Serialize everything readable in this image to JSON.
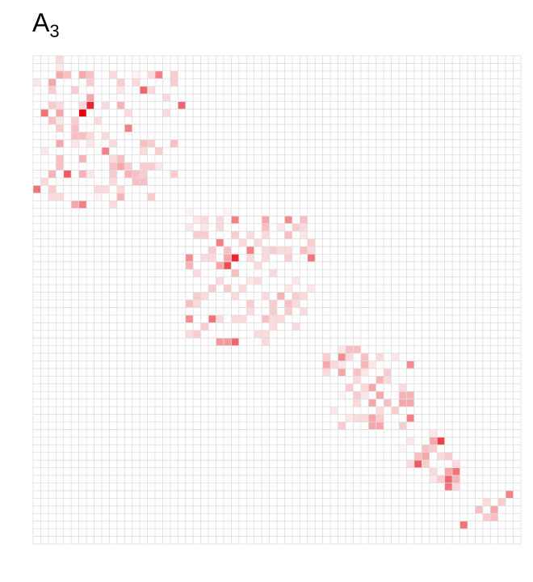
{
  "chart_data": {
    "type": "heatmap",
    "title": {
      "base": "A",
      "subscript": "3"
    },
    "rows": 64,
    "cols": 64,
    "color_low": "#ffffff",
    "color_high": "#e8000b",
    "grid_color": "#dddddd",
    "cells": [
      [
        0,
        3,
        0.15
      ],
      [
        1,
        3,
        0.1
      ],
      [
        2,
        3,
        0.35
      ],
      [
        2,
        4,
        0.25
      ],
      [
        2,
        6,
        0.35
      ],
      [
        2,
        7,
        0.25
      ],
      [
        2,
        10,
        0.15
      ],
      [
        2,
        13,
        0.05
      ],
      [
        2,
        15,
        0.15
      ],
      [
        2,
        16,
        0.5
      ],
      [
        2,
        18,
        0.2
      ],
      [
        3,
        0,
        0.1
      ],
      [
        3,
        2,
        0.35
      ],
      [
        3,
        7,
        0.2
      ],
      [
        3,
        11,
        0.2
      ],
      [
        3,
        13,
        0.15
      ],
      [
        3,
        18,
        0.2
      ],
      [
        4,
        2,
        0.2
      ],
      [
        4,
        5,
        0.2
      ],
      [
        4,
        11,
        0.1
      ],
      [
        4,
        14,
        0.6
      ],
      [
        4,
        15,
        0.15
      ],
      [
        5,
        7,
        0.35
      ],
      [
        5,
        17,
        0.15
      ],
      [
        6,
        2,
        0.2
      ],
      [
        6,
        3,
        0.15
      ],
      [
        6,
        6,
        0.15
      ],
      [
        6,
        7,
        0.85
      ],
      [
        6,
        9,
        0.15
      ],
      [
        6,
        11,
        0.3
      ],
      [
        6,
        19,
        0.6
      ],
      [
        7,
        1,
        0.55
      ],
      [
        7,
        3,
        0.35
      ],
      [
        7,
        6,
        1.0
      ],
      [
        7,
        12,
        0.15
      ],
      [
        7,
        17,
        0.15
      ],
      [
        8,
        2,
        0.25
      ],
      [
        8,
        3,
        0.1
      ],
      [
        8,
        5,
        0.2
      ],
      [
        8,
        8,
        0.15
      ],
      [
        9,
        3,
        0.2
      ],
      [
        9,
        5,
        0.25
      ],
      [
        9,
        12,
        0.5
      ],
      [
        10,
        5,
        0.25
      ],
      [
        10,
        6,
        0.25
      ],
      [
        10,
        7,
        0.15
      ],
      [
        10,
        9,
        0.15
      ],
      [
        11,
        3,
        0.35
      ],
      [
        11,
        5,
        0.1
      ],
      [
        11,
        7,
        0.1
      ],
      [
        11,
        10,
        0.15
      ],
      [
        11,
        14,
        0.25
      ],
      [
        11,
        15,
        0.2
      ],
      [
        11,
        18,
        0.25
      ],
      [
        12,
        1,
        0.1
      ],
      [
        12,
        9,
        0.5
      ],
      [
        12,
        14,
        0.15
      ],
      [
        12,
        16,
        0.2
      ],
      [
        13,
        3,
        0.25
      ],
      [
        13,
        6,
        0.3
      ],
      [
        13,
        10,
        0.15
      ],
      [
        13,
        11,
        0.25
      ],
      [
        14,
        3,
        0.25
      ],
      [
        14,
        10,
        0.25
      ],
      [
        14,
        11,
        0.35
      ],
      [
        14,
        12,
        0.2
      ],
      [
        14,
        14,
        0.2
      ],
      [
        14,
        15,
        0.2
      ],
      [
        14,
        16,
        0.1
      ],
      [
        15,
        2,
        0.3
      ],
      [
        15,
        4,
        0.65
      ],
      [
        15,
        6,
        0.3
      ],
      [
        15,
        7,
        0.1
      ],
      [
        15,
        10,
        0.2
      ],
      [
        15,
        12,
        0.3
      ],
      [
        15,
        13,
        0.25
      ],
      [
        15,
        14,
        0.2
      ],
      [
        15,
        18,
        0.2
      ],
      [
        16,
        1,
        0.15
      ],
      [
        16,
        10,
        0.15
      ],
      [
        16,
        13,
        0.25
      ],
      [
        16,
        14,
        0.25
      ],
      [
        17,
        0,
        0.55
      ],
      [
        17,
        2,
        0.2
      ],
      [
        17,
        8,
        0.15
      ],
      [
        17,
        9,
        0.15
      ],
      [
        17,
        11,
        0.15
      ],
      [
        18,
        2,
        0.15
      ],
      [
        18,
        3,
        0.15
      ],
      [
        18,
        8,
        0.05
      ],
      [
        18,
        11,
        0.3
      ],
      [
        18,
        15,
        0.2
      ],
      [
        19,
        5,
        0.35
      ],
      [
        19,
        6,
        0.5
      ],
      [
        19,
        10,
        0.15
      ],
      [
        20,
        20,
        0.05
      ],
      [
        20,
        25,
        0.05
      ],
      [
        21,
        21,
        0.1
      ],
      [
        21,
        22,
        0.15
      ],
      [
        21,
        24,
        0.15
      ],
      [
        21,
        26,
        0.5
      ],
      [
        21,
        30,
        0.35
      ],
      [
        21,
        33,
        0.45
      ],
      [
        21,
        35,
        0.25
      ],
      [
        22,
        20,
        0.1
      ],
      [
        22,
        22,
        0.1
      ],
      [
        22,
        24,
        0.15
      ],
      [
        22,
        30,
        0.25
      ],
      [
        22,
        32,
        0.1
      ],
      [
        22,
        34,
        0.2
      ],
      [
        22,
        35,
        0.15
      ],
      [
        23,
        21,
        0.2
      ],
      [
        23,
        22,
        0.2
      ],
      [
        23,
        26,
        0.2
      ],
      [
        23,
        28,
        0.15
      ],
      [
        23,
        30,
        0.15
      ],
      [
        23,
        33,
        0.25
      ],
      [
        23,
        35,
        0.1
      ],
      [
        24,
        24,
        0.5
      ],
      [
        24,
        27,
        0.15
      ],
      [
        24,
        29,
        0.15
      ],
      [
        24,
        36,
        0.2
      ],
      [
        25,
        23,
        0.2
      ],
      [
        25,
        25,
        0.25
      ],
      [
        25,
        28,
        0.5
      ],
      [
        25,
        30,
        0.15
      ],
      [
        25,
        31,
        0.2
      ],
      [
        25,
        32,
        0.15
      ],
      [
        25,
        33,
        0.15
      ],
      [
        25,
        35,
        0.25
      ],
      [
        25,
        36,
        0.15
      ],
      [
        26,
        20,
        0.45
      ],
      [
        26,
        22,
        0.15
      ],
      [
        26,
        23,
        0.15
      ],
      [
        26,
        25,
        0.35
      ],
      [
        26,
        26,
        0.85
      ],
      [
        26,
        28,
        0.15
      ],
      [
        26,
        30,
        0.15
      ],
      [
        26,
        33,
        0.2
      ],
      [
        26,
        36,
        0.55
      ],
      [
        27,
        20,
        0.3
      ],
      [
        27,
        24,
        0.35
      ],
      [
        27,
        25,
        0.7
      ],
      [
        27,
        29,
        0.15
      ],
      [
        28,
        21,
        0.15
      ],
      [
        28,
        26,
        0.25
      ],
      [
        28,
        31,
        0.15
      ],
      [
        29,
        24,
        0.15
      ],
      [
        29,
        28,
        0.1
      ],
      [
        29,
        29,
        0.15
      ],
      [
        29,
        34,
        0.1
      ],
      [
        30,
        23,
        0.2
      ],
      [
        30,
        25,
        0.2
      ],
      [
        30,
        27,
        0.15
      ],
      [
        30,
        33,
        0.1
      ],
      [
        30,
        36,
        0.1
      ],
      [
        31,
        21,
        0.2
      ],
      [
        31,
        22,
        0.15
      ],
      [
        31,
        26,
        0.15
      ],
      [
        31,
        30,
        0.15
      ],
      [
        31,
        32,
        0.3
      ],
      [
        31,
        34,
        0.2
      ],
      [
        31,
        35,
        0.15
      ],
      [
        32,
        20,
        0.25
      ],
      [
        32,
        21,
        0.15
      ],
      [
        32,
        28,
        0.2
      ],
      [
        32,
        31,
        0.2
      ],
      [
        32,
        33,
        0.25
      ],
      [
        32,
        34,
        0.15
      ],
      [
        33,
        28,
        0.15
      ],
      [
        33,
        31,
        0.2
      ],
      [
        33,
        33,
        0.2
      ],
      [
        33,
        35,
        0.15
      ],
      [
        34,
        20,
        0.45
      ],
      [
        34,
        23,
        0.55
      ],
      [
        34,
        24,
        0.15
      ],
      [
        34,
        26,
        0.15
      ],
      [
        34,
        27,
        0.15
      ],
      [
        34,
        30,
        0.25
      ],
      [
        34,
        31,
        0.15
      ],
      [
        34,
        32,
        0.15
      ],
      [
        35,
        22,
        0.2
      ],
      [
        35,
        31,
        0.15
      ],
      [
        35,
        34,
        0.15
      ],
      [
        36,
        20,
        0.15
      ],
      [
        36,
        21,
        0.2
      ],
      [
        36,
        29,
        0.15
      ],
      [
        36,
        30,
        0.15
      ],
      [
        37,
        24,
        0.4
      ],
      [
        37,
        25,
        0.4
      ],
      [
        37,
        26,
        0.6
      ],
      [
        37,
        30,
        0.15
      ],
      [
        38,
        40,
        0.1
      ],
      [
        38,
        41,
        0.25
      ],
      [
        38,
        42,
        0.25
      ],
      [
        39,
        38,
        0.2
      ],
      [
        39,
        40,
        0.45
      ],
      [
        39,
        41,
        0.15
      ],
      [
        39,
        43,
        0.25
      ],
      [
        39,
        45,
        0.15
      ],
      [
        39,
        47,
        0.1
      ],
      [
        40,
        38,
        0.35
      ],
      [
        40,
        39,
        0.15
      ],
      [
        40,
        40,
        0.1
      ],
      [
        40,
        43,
        0.3
      ],
      [
        40,
        44,
        0.1
      ],
      [
        40,
        49,
        0.45
      ],
      [
        41,
        38,
        0.15
      ],
      [
        41,
        40,
        0.35
      ],
      [
        41,
        42,
        0.25
      ],
      [
        41,
        43,
        0.1
      ],
      [
        41,
        46,
        0.2
      ],
      [
        42,
        42,
        0.15
      ],
      [
        42,
        45,
        0.3
      ],
      [
        42,
        46,
        0.15
      ],
      [
        43,
        41,
        0.2
      ],
      [
        43,
        43,
        0.15
      ],
      [
        43,
        44,
        0.35
      ],
      [
        43,
        48,
        0.15
      ],
      [
        44,
        40,
        0.05
      ],
      [
        44,
        42,
        0.2
      ],
      [
        44,
        43,
        0.1
      ],
      [
        44,
        45,
        0.35
      ],
      [
        44,
        48,
        0.3
      ],
      [
        44,
        49,
        0.3
      ],
      [
        45,
        42,
        0.15
      ],
      [
        45,
        44,
        0.35
      ],
      [
        45,
        46,
        0.25
      ],
      [
        45,
        48,
        0.35
      ],
      [
        45,
        49,
        0.35
      ],
      [
        46,
        39,
        0.1
      ],
      [
        46,
        45,
        0.15
      ],
      [
        46,
        47,
        0.2
      ],
      [
        47,
        41,
        0.1
      ],
      [
        47,
        42,
        0.15
      ],
      [
        47,
        43,
        0.15
      ],
      [
        47,
        44,
        0.35
      ],
      [
        47,
        45,
        0.2
      ],
      [
        47,
        49,
        0.5
      ],
      [
        48,
        40,
        0.2
      ],
      [
        48,
        44,
        0.35
      ],
      [
        48,
        45,
        0.35
      ],
      [
        48,
        48,
        0.2
      ],
      [
        49,
        52,
        0.1
      ],
      [
        50,
        49,
        0.1
      ],
      [
        50,
        52,
        0.35
      ],
      [
        50,
        53,
        0.75
      ],
      [
        51,
        48,
        0.05
      ],
      [
        51,
        51,
        0.25
      ],
      [
        51,
        52,
        0.2
      ],
      [
        52,
        50,
        0.25
      ],
      [
        52,
        51,
        0.35
      ],
      [
        52,
        53,
        0.15
      ],
      [
        52,
        54,
        0.2
      ],
      [
        53,
        49,
        0.15
      ],
      [
        53,
        50,
        0.65
      ],
      [
        53,
        51,
        0.2
      ],
      [
        53,
        55,
        0.15
      ],
      [
        54,
        52,
        0.15
      ],
      [
        54,
        54,
        0.35
      ],
      [
        54,
        55,
        0.55
      ],
      [
        55,
        52,
        0.1
      ],
      [
        55,
        53,
        0.2
      ],
      [
        55,
        54,
        0.6
      ],
      [
        55,
        55,
        0.3
      ],
      [
        56,
        54,
        0.55
      ],
      [
        56,
        55,
        0.15
      ],
      [
        57,
        62,
        0.5
      ],
      [
        58,
        59,
        0.15
      ],
      [
        58,
        61,
        0.2
      ],
      [
        59,
        58,
        0.25
      ],
      [
        59,
        60,
        0.35
      ],
      [
        60,
        59,
        0.2
      ],
      [
        60,
        60,
        0.25
      ],
      [
        61,
        56,
        0.55
      ]
    ]
  }
}
